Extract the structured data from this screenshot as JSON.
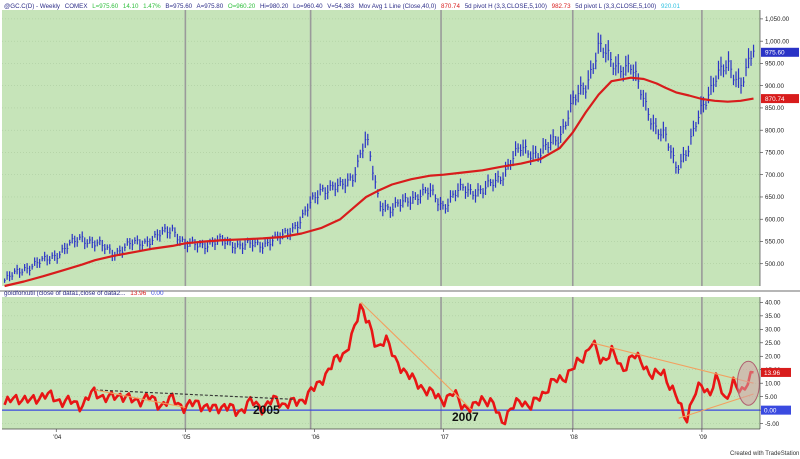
{
  "header": {
    "top": {
      "symbol": "@GC.C(D) - Weekly",
      "exchange": "COMEX",
      "last": "L=975.60",
      "chg": "14.10",
      "pct": "1.47%",
      "bid": "B=975.60",
      "ask": "A=975.80",
      "open": "O=960.20",
      "high": "Hi=980.20",
      "low": "Lo=960.40",
      "vol": "V=54,383",
      "ma": "Mov Avg 1 Line (Close,40,0)",
      "ma_val": "870.74",
      "pivot_h": "5d pivot H (3,3,CLOSE,5,100)",
      "pivot_h_val": "982.73",
      "pivot_l": "5d pivot L (3,3,CLOSE,5,100)",
      "pivot_l_val": "920.01"
    },
    "bottom": {
      "indicator": "goldforxutil (close of data1,close of data2...",
      "val1": "13.96",
      "val2": "0.00"
    }
  },
  "colors": {
    "bg": "#c6e4b9",
    "price_bars": "#2a33c6",
    "ma_line": "#d81c1c",
    "indicator": "#e81515",
    "trend": "#f2a060",
    "zero": "#3a4ae0",
    "separator": "#9a9a9a"
  },
  "annotations": {
    "label_2005": "2005",
    "label_2007": "2007"
  },
  "footer": "Created with TradeStation",
  "chart_data": [
    {
      "type": "line",
      "panel": "price",
      "x_ticks": [
        "'04",
        "'05",
        "'06",
        "'07",
        "'08",
        "'09"
      ],
      "y_ticks": [
        500,
        550,
        600,
        650,
        700,
        750,
        800,
        850,
        900,
        950,
        1000,
        1050
      ],
      "y_tick_labels": [
        "500.00",
        "550.00",
        "600.00",
        "650.00",
        "700.00",
        "750.00",
        "800.00",
        "850.00",
        "900.00",
        "950.00",
        "1,000.00",
        "1,050.00"
      ],
      "ylim": [
        450,
        1070
      ],
      "price_label": "975.60",
      "ma_label": "870.74",
      "x": [
        2003.6,
        2003.75,
        2003.9,
        2004.05,
        2004.2,
        2004.3,
        2004.45,
        2004.6,
        2004.75,
        2004.9,
        2005.0,
        2005.15,
        2005.3,
        2005.45,
        2005.6,
        2005.75,
        2005.9,
        2006.05,
        2006.2,
        2006.3,
        2006.4,
        2006.5,
        2006.6,
        2006.75,
        2006.9,
        2007.0,
        2007.15,
        2007.3,
        2007.45,
        2007.6,
        2007.75,
        2007.9,
        2008.0,
        2008.1,
        2008.2,
        2008.3,
        2008.45,
        2008.55,
        2008.65,
        2008.72,
        2008.8,
        2008.9,
        2009.0,
        2009.1,
        2009.2,
        2009.3,
        2009.4
      ],
      "series": [
        {
          "values": [
            462,
            490,
            505,
            530,
            560,
            545,
            525,
            545,
            555,
            580,
            540,
            545,
            550,
            540,
            545,
            560,
            600,
            670,
            670,
            700,
            780,
            640,
            620,
            650,
            660,
            630,
            670,
            660,
            700,
            760,
            745,
            790,
            860,
            900,
            990,
            950,
            940,
            870,
            800,
            780,
            720,
            760,
            850,
            920,
            940,
            910,
            975
          ]
        },
        {
          "values": [
            450,
            460,
            472,
            485,
            498,
            508,
            518,
            526,
            534,
            540,
            546,
            550,
            553,
            555,
            557,
            560,
            568,
            580,
            600,
            625,
            650,
            665,
            678,
            690,
            698,
            700,
            705,
            710,
            718,
            725,
            735,
            760,
            795,
            840,
            880,
            910,
            918,
            915,
            905,
            895,
            885,
            878,
            870,
            866,
            864,
            866,
            871
          ]
        }
      ]
    },
    {
      "type": "line",
      "panel": "indicator",
      "y_ticks": [
        -5,
        0,
        5,
        10,
        15,
        20,
        25,
        30,
        35,
        40
      ],
      "y_tick_labels": [
        "-5.00",
        "0.00",
        "5.00",
        "10.00",
        "15.00",
        "20.00",
        "25.00",
        "30.00",
        "35.00",
        "40.00"
      ],
      "ylim": [
        -7,
        42
      ],
      "value_label": "13.96",
      "zero_label": "0.00",
      "x": [
        2003.6,
        2003.7,
        2003.8,
        2003.9,
        2004.0,
        2004.1,
        2004.2,
        2004.3,
        2004.4,
        2004.5,
        2004.6,
        2004.7,
        2004.8,
        2004.9,
        2005.0,
        2005.1,
        2005.2,
        2005.3,
        2005.4,
        2005.5,
        2005.6,
        2005.7,
        2005.78,
        2005.86,
        2005.94,
        2006.0,
        2006.06,
        2006.12,
        2006.18,
        2006.25,
        2006.3,
        2006.36,
        2006.42,
        2006.48,
        2006.55,
        2006.62,
        2006.7,
        2006.78,
        2006.86,
        2006.94,
        2007.0,
        2007.08,
        2007.15,
        2007.22,
        2007.3,
        2007.38,
        2007.45,
        2007.52,
        2007.6,
        2007.68,
        2007.76,
        2007.84,
        2007.92,
        2008.0,
        2008.08,
        2008.15,
        2008.22,
        2008.3,
        2008.38,
        2008.46,
        2008.54,
        2008.62,
        2008.7,
        2008.76,
        2008.82,
        2008.88,
        2008.94,
        2009.0,
        2009.06,
        2009.12,
        2009.18,
        2009.24,
        2009.3,
        2009.36,
        2009.4
      ],
      "series": [
        {
          "values": [
            2,
            5,
            3,
            6,
            4,
            3,
            2,
            7,
            4,
            6,
            3,
            5,
            2,
            4,
            1,
            3,
            0,
            2,
            -1,
            3,
            1,
            4,
            2,
            3,
            5,
            8,
            12,
            15,
            20,
            22,
            28,
            40,
            32,
            22,
            28,
            18,
            15,
            10,
            8,
            5,
            4,
            6,
            2,
            0,
            5,
            2,
            -4,
            0,
            4,
            1,
            6,
            10,
            12,
            15,
            20,
            25,
            18,
            22,
            15,
            20,
            18,
            12,
            15,
            8,
            3,
            -3,
            5,
            10,
            6,
            12,
            4,
            10,
            6,
            12,
            14
          ]
        }
      ]
    }
  ]
}
